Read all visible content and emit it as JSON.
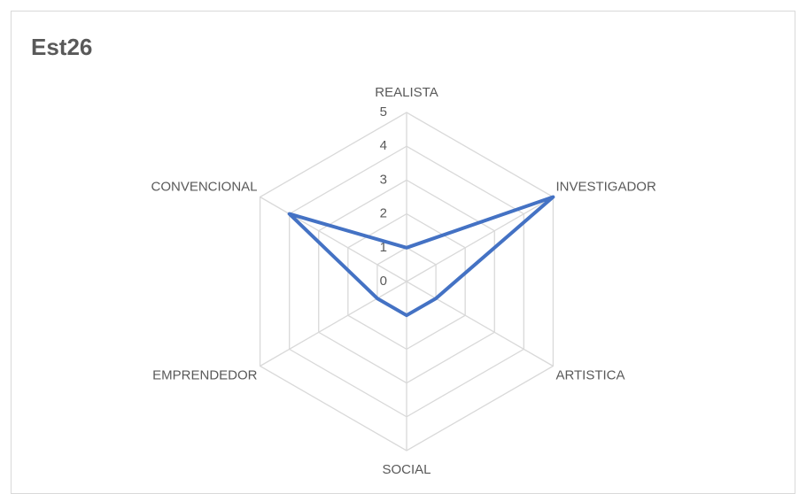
{
  "chart_data": {
    "type": "radar",
    "title": "Est26",
    "categories": [
      "REALISTA",
      "INVESTIGADOR",
      "ARTISTICA",
      "SOCIAL",
      "EMPRENDEDOR",
      "CONVENCIONAL"
    ],
    "series": [
      {
        "name": "Est26",
        "color": "#4472c4",
        "values": [
          1,
          5,
          1,
          1,
          1,
          4
        ]
      }
    ],
    "ylim": [
      0,
      5
    ],
    "yticks": [
      0,
      1,
      2,
      3,
      4,
      5
    ],
    "grid": true
  }
}
